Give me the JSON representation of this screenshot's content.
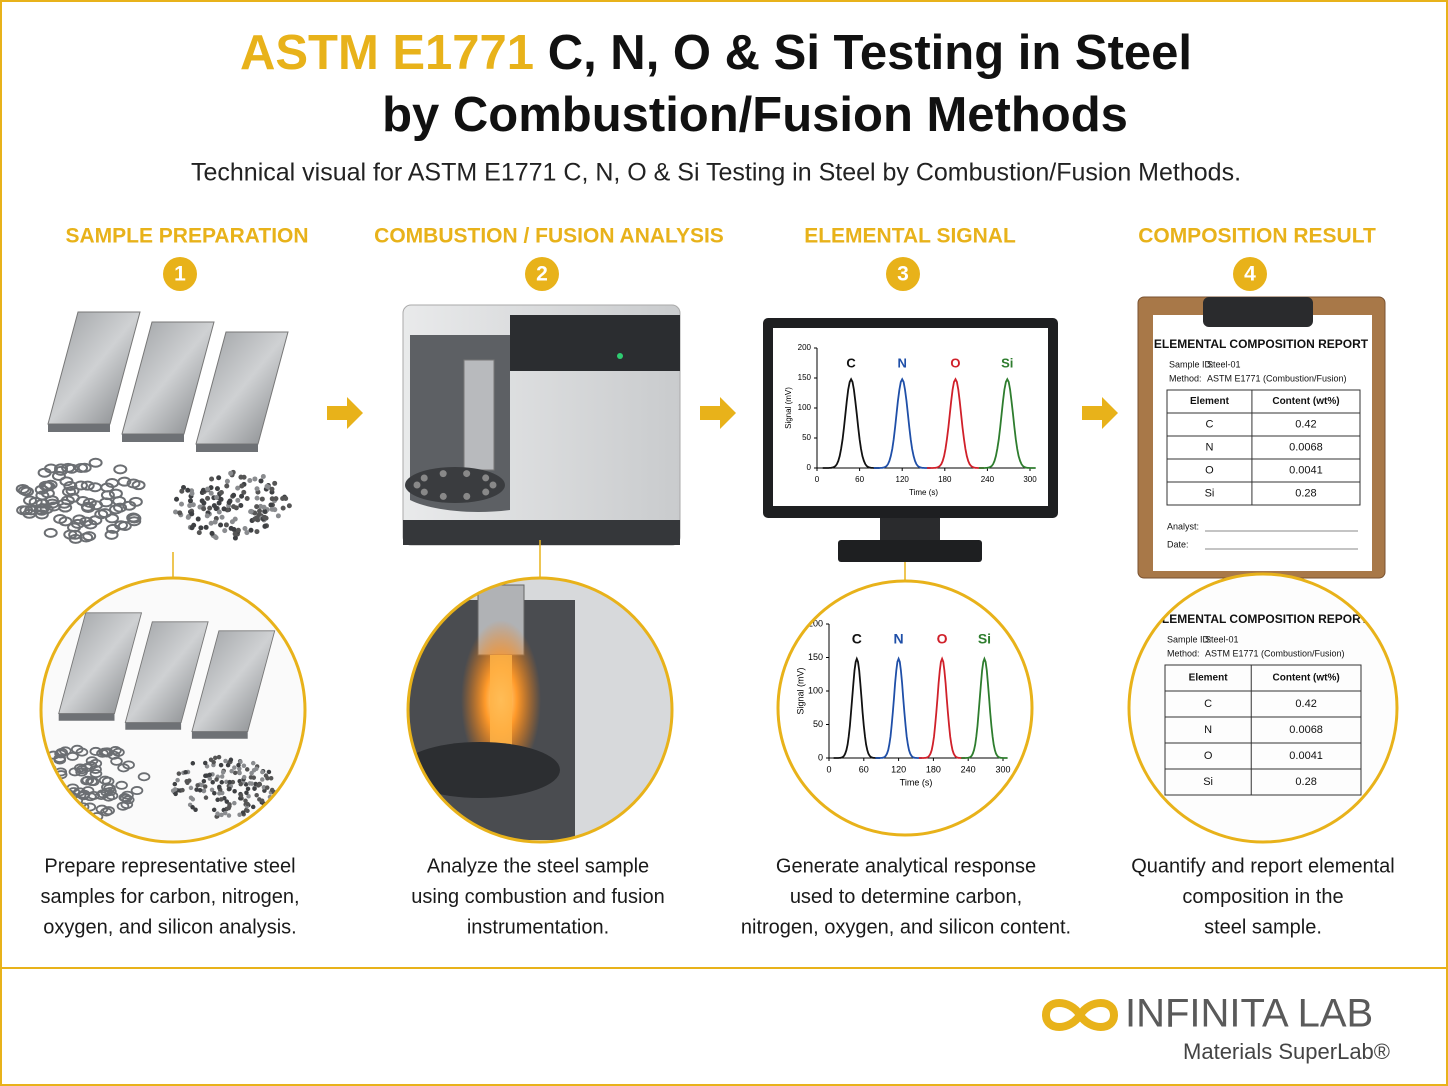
{
  "title": {
    "highlight": "ASTM E1771",
    "rest": "C, N, O & Si Testing in Steel",
    "line2": "by Combustion/Fusion Methods"
  },
  "subtitle": "Technical visual for ASTM E1771 C, N, O & Si Testing in Steel by Combustion/Fusion Methods.",
  "steps": [
    {
      "number": "1",
      "heading": "SAMPLE PREPARATION",
      "description": [
        "Prepare representative steel",
        "samples for carbon, nitrogen,",
        "oxygen, and silicon analysis."
      ]
    },
    {
      "number": "2",
      "heading": "COMBUSTION / FUSION ANALYSIS",
      "description": [
        "Analyze the steel sample",
        "using combustion and fusion",
        "instrumentation."
      ]
    },
    {
      "number": "3",
      "heading": "ELEMENTAL SIGNAL",
      "description": [
        "Generate analytical response",
        "used to determine carbon,",
        "nitrogen, oxygen, and silicon content."
      ]
    },
    {
      "number": "4",
      "heading": "COMPOSITION RESULT",
      "description": [
        "Quantify and report elemental",
        "composition in the",
        "steel sample."
      ]
    }
  ],
  "signal_chart": {
    "y_label": "Signal (mV)",
    "x_label": "Time (s)",
    "ylim": [
      0,
      200
    ],
    "yticks": [
      0,
      50,
      100,
      150,
      200
    ],
    "xlim": [
      0,
      300
    ],
    "xticks": [
      0,
      60,
      120,
      180,
      240,
      300
    ],
    "peaks": [
      {
        "name": "C",
        "center": 48,
        "height": 148,
        "color": "#111111"
      },
      {
        "name": "N",
        "center": 120,
        "height": 148,
        "color": "#1f4fa8"
      },
      {
        "name": "O",
        "center": 195,
        "height": 148,
        "color": "#d0202a"
      },
      {
        "name": "Si",
        "center": 268,
        "height": 148,
        "color": "#2e7d2e"
      }
    ]
  },
  "report": {
    "title": "ELEMENTAL COMPOSITION REPORT",
    "sample_id_label": "Sample ID:",
    "sample_id": "Steel-01",
    "method_label": "Method:",
    "method": "ASTM E1771 (Combustion/Fusion)",
    "columns": [
      "Element",
      "Content (wt%)"
    ],
    "rows": [
      [
        "C",
        "0.42"
      ],
      [
        "N",
        "0.0068"
      ],
      [
        "O",
        "0.0041"
      ],
      [
        "Si",
        "0.28"
      ]
    ],
    "analyst_label": "Analyst:",
    "date_label": "Date:"
  },
  "brand": {
    "name": "INFINITA LAB",
    "tagline": "Materials SuperLab®"
  }
}
